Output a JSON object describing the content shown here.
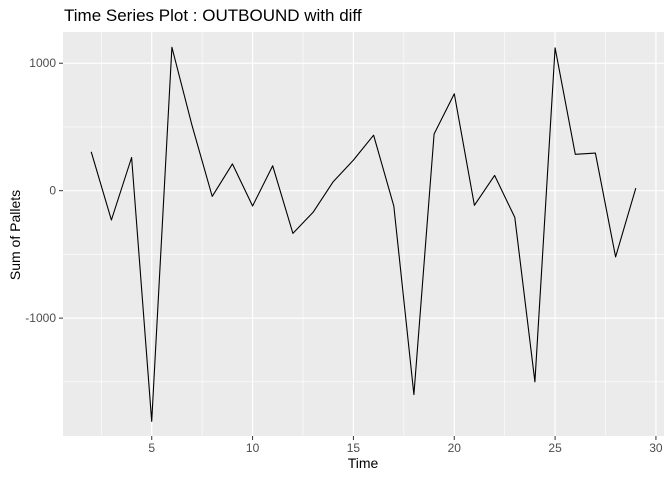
{
  "chart_data": {
    "type": "line",
    "title": "Time Series Plot : OUTBOUND with diff",
    "xlabel": "Time",
    "ylabel": "Sum of Pallets",
    "xlim": [
      0.6,
      30.4
    ],
    "ylim": [
      -1925,
      1245
    ],
    "x_ticks": [
      5,
      10,
      15,
      20,
      25,
      30
    ],
    "x_tick_labels": [
      "5",
      "10",
      "15",
      "20",
      "25",
      "30"
    ],
    "y_ticks": [
      -1000,
      0,
      1000
    ],
    "y_tick_labels": [
      "-1000",
      "0",
      "1000"
    ],
    "grid": true,
    "line_color": "#000000",
    "panel_background": "#EBEBEB",
    "grid_color": "#FFFFFF",
    "tick_label_color": "#4D4D4D",
    "series": [
      {
        "x": [
          2,
          3,
          4,
          5,
          6,
          7,
          8,
          9,
          10,
          11,
          12,
          13,
          14,
          15,
          16,
          17,
          18,
          19,
          20,
          21,
          22,
          23,
          24,
          25,
          26,
          27,
          28,
          29
        ],
        "values": [
          305,
          -230,
          260,
          -1810,
          1125,
          510,
          -45,
          210,
          -120,
          195,
          -335,
          -170,
          70,
          240,
          435,
          -120,
          -1600,
          445,
          760,
          -115,
          120,
          -210,
          -1500,
          1120,
          285,
          295,
          -520,
          20
        ]
      }
    ]
  }
}
